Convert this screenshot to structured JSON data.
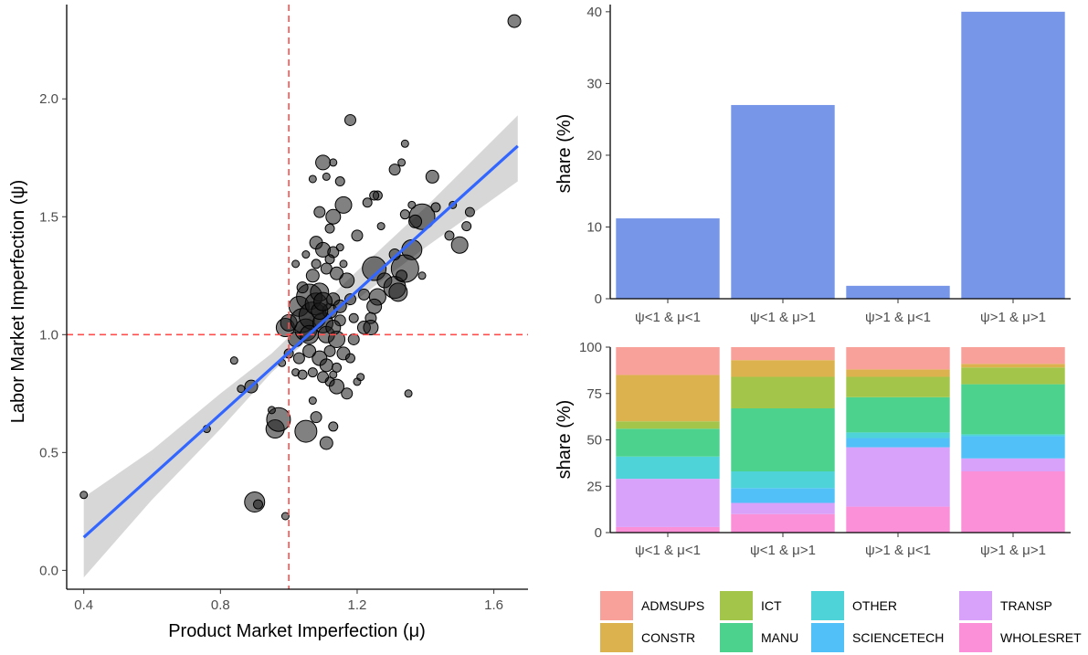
{
  "chart_data": [
    {
      "type": "scatter",
      "xlabel": "Product Market Imperfection (μ)",
      "ylabel": "Labor Market Imperfection (ψ)",
      "xlim": [
        0.35,
        1.7
      ],
      "ylim": [
        -0.08,
        2.4
      ],
      "xticks": [
        0.4,
        0.8,
        1.2,
        1.6
      ],
      "xtick_labels": [
        "0.4",
        "0.8",
        "1.2",
        "1.6"
      ],
      "yticks": [
        0.0,
        0.5,
        1.0,
        1.5,
        2.0
      ],
      "ytick_labels": [
        "0.0",
        "0.5",
        "1.0",
        "1.5",
        "2.0"
      ],
      "reference_lines": {
        "x": 1.0,
        "y": 1.0,
        "color": "#ff4d4d",
        "style": "dashed"
      },
      "fit": {
        "x": [
          0.4,
          1.67
        ],
        "y": [
          0.14,
          1.8
        ],
        "color": "#3366ff"
      },
      "confidence_band": {
        "x": [
          0.4,
          0.6,
          0.8,
          0.95,
          1.05,
          1.2,
          1.4,
          1.67
        ],
        "lower": [
          -0.03,
          0.3,
          0.6,
          0.84,
          0.97,
          1.15,
          1.37,
          1.65
        ],
        "upper": [
          0.31,
          0.51,
          0.75,
          0.92,
          1.06,
          1.27,
          1.54,
          1.93
        ],
        "color": "#d3d3d3"
      },
      "points": [
        {
          "x": 1.66,
          "y": 2.33,
          "s": 7
        },
        {
          "x": 0.4,
          "y": 0.32,
          "s": 4
        },
        {
          "x": 0.76,
          "y": 0.6,
          "s": 4
        },
        {
          "x": 0.84,
          "y": 0.89,
          "s": 4
        },
        {
          "x": 0.86,
          "y": 0.77,
          "s": 4
        },
        {
          "x": 0.89,
          "y": 0.78,
          "s": 7
        },
        {
          "x": 0.9,
          "y": 0.29,
          "s": 11
        },
        {
          "x": 0.91,
          "y": 0.28,
          "s": 5
        },
        {
          "x": 0.96,
          "y": 0.6,
          "s": 10
        },
        {
          "x": 0.97,
          "y": 0.64,
          "s": 13
        },
        {
          "x": 0.99,
          "y": 0.23,
          "s": 4
        },
        {
          "x": 0.95,
          "y": 0.68,
          "s": 4
        },
        {
          "x": 1.05,
          "y": 0.59,
          "s": 12
        },
        {
          "x": 1.08,
          "y": 0.65,
          "s": 6
        },
        {
          "x": 1.11,
          "y": 0.54,
          "s": 7
        },
        {
          "x": 1.13,
          "y": 0.61,
          "s": 5
        },
        {
          "x": 1.07,
          "y": 0.72,
          "s": 4
        },
        {
          "x": 1.12,
          "y": 0.8,
          "s": 5
        },
        {
          "x": 1.14,
          "y": 0.78,
          "s": 8
        },
        {
          "x": 1.18,
          "y": 1.91,
          "s": 6
        },
        {
          "x": 1.1,
          "y": 1.73,
          "s": 8
        },
        {
          "x": 1.11,
          "y": 1.67,
          "s": 4
        },
        {
          "x": 1.13,
          "y": 1.73,
          "s": 4
        },
        {
          "x": 1.15,
          "y": 1.65,
          "s": 5
        },
        {
          "x": 1.07,
          "y": 1.66,
          "s": 4
        },
        {
          "x": 1.16,
          "y": 1.55,
          "s": 9
        },
        {
          "x": 1.13,
          "y": 1.5,
          "s": 8
        },
        {
          "x": 1.09,
          "y": 1.52,
          "s": 6
        },
        {
          "x": 1.12,
          "y": 1.45,
          "s": 5
        },
        {
          "x": 1.08,
          "y": 1.39,
          "s": 7
        },
        {
          "x": 1.1,
          "y": 1.36,
          "s": 8
        },
        {
          "x": 1.13,
          "y": 1.35,
          "s": 6
        },
        {
          "x": 1.15,
          "y": 1.37,
          "s": 4
        },
        {
          "x": 1.26,
          "y": 1.59,
          "s": 5
        },
        {
          "x": 1.31,
          "y": 1.7,
          "s": 6
        },
        {
          "x": 1.33,
          "y": 1.73,
          "s": 4
        },
        {
          "x": 1.34,
          "y": 1.81,
          "s": 4
        },
        {
          "x": 1.36,
          "y": 1.55,
          "s": 4
        },
        {
          "x": 1.34,
          "y": 1.51,
          "s": 5
        },
        {
          "x": 1.39,
          "y": 1.5,
          "s": 14
        },
        {
          "x": 1.37,
          "y": 1.48,
          "s": 7
        },
        {
          "x": 1.42,
          "y": 1.67,
          "s": 7
        },
        {
          "x": 1.43,
          "y": 1.54,
          "s": 5
        },
        {
          "x": 1.48,
          "y": 1.55,
          "s": 4
        },
        {
          "x": 1.53,
          "y": 1.52,
          "s": 5
        },
        {
          "x": 1.52,
          "y": 1.46,
          "s": 5
        },
        {
          "x": 1.47,
          "y": 1.42,
          "s": 5
        },
        {
          "x": 1.5,
          "y": 1.38,
          "s": 9
        },
        {
          "x": 1.36,
          "y": 1.36,
          "s": 11
        },
        {
          "x": 1.39,
          "y": 1.25,
          "s": 4
        },
        {
          "x": 1.34,
          "y": 1.28,
          "s": 15
        },
        {
          "x": 1.31,
          "y": 1.34,
          "s": 6
        },
        {
          "x": 1.27,
          "y": 1.46,
          "s": 4
        },
        {
          "x": 1.25,
          "y": 1.28,
          "s": 13
        },
        {
          "x": 1.28,
          "y": 1.23,
          "s": 8
        },
        {
          "x": 1.31,
          "y": 1.2,
          "s": 12
        },
        {
          "x": 1.32,
          "y": 1.18,
          "s": 10
        },
        {
          "x": 1.33,
          "y": 1.25,
          "s": 6
        },
        {
          "x": 1.23,
          "y": 1.56,
          "s": 5
        },
        {
          "x": 1.2,
          "y": 1.42,
          "s": 6
        },
        {
          "x": 1.25,
          "y": 1.59,
          "s": 5
        },
        {
          "x": 1.22,
          "y": 1.17,
          "s": 6
        },
        {
          "x": 1.26,
          "y": 1.16,
          "s": 9
        },
        {
          "x": 1.25,
          "y": 1.12,
          "s": 8
        },
        {
          "x": 1.24,
          "y": 1.07,
          "s": 6
        },
        {
          "x": 1.22,
          "y": 1.03,
          "s": 7
        },
        {
          "x": 1.24,
          "y": 1.03,
          "s": 8
        },
        {
          "x": 1.17,
          "y": 0.75,
          "s": 6
        },
        {
          "x": 1.2,
          "y": 0.8,
          "s": 4
        },
        {
          "x": 1.21,
          "y": 0.82,
          "s": 4
        },
        {
          "x": 1.35,
          "y": 0.75,
          "s": 4
        },
        {
          "x": 0.99,
          "y": 1.03,
          "s": 10
        },
        {
          "x": 1.0,
          "y": 1.05,
          "s": 9
        },
        {
          "x": 1.02,
          "y": 0.98,
          "s": 8
        },
        {
          "x": 1.03,
          "y": 1.12,
          "s": 11
        },
        {
          "x": 1.04,
          "y": 1.06,
          "s": 13
        },
        {
          "x": 1.05,
          "y": 1.02,
          "s": 12
        },
        {
          "x": 1.06,
          "y": 1.16,
          "s": 14
        },
        {
          "x": 1.07,
          "y": 1.08,
          "s": 15
        },
        {
          "x": 1.08,
          "y": 1.13,
          "s": 12
        },
        {
          "x": 1.09,
          "y": 1.18,
          "s": 10
        },
        {
          "x": 1.1,
          "y": 1.05,
          "s": 11
        },
        {
          "x": 1.11,
          "y": 1.0,
          "s": 9
        },
        {
          "x": 1.12,
          "y": 1.1,
          "s": 8
        },
        {
          "x": 1.13,
          "y": 1.15,
          "s": 7
        },
        {
          "x": 1.14,
          "y": 0.98,
          "s": 9
        },
        {
          "x": 1.15,
          "y": 1.06,
          "s": 6
        },
        {
          "x": 1.16,
          "y": 0.92,
          "s": 7
        },
        {
          "x": 1.12,
          "y": 0.93,
          "s": 6
        },
        {
          "x": 1.09,
          "y": 0.9,
          "s": 8
        },
        {
          "x": 1.06,
          "y": 0.93,
          "s": 7
        },
        {
          "x": 1.03,
          "y": 0.9,
          "s": 6
        },
        {
          "x": 1.0,
          "y": 0.92,
          "s": 5
        },
        {
          "x": 1.11,
          "y": 0.87,
          "s": 7
        },
        {
          "x": 1.14,
          "y": 0.86,
          "s": 5
        },
        {
          "x": 1.18,
          "y": 0.9,
          "s": 5
        },
        {
          "x": 1.19,
          "y": 0.98,
          "s": 6
        },
        {
          "x": 1.19,
          "y": 1.07,
          "s": 5
        },
        {
          "x": 1.18,
          "y": 1.15,
          "s": 6
        },
        {
          "x": 1.17,
          "y": 1.23,
          "s": 8
        },
        {
          "x": 1.14,
          "y": 1.26,
          "s": 7
        },
        {
          "x": 1.11,
          "y": 1.28,
          "s": 6
        },
        {
          "x": 1.07,
          "y": 1.25,
          "s": 7
        },
        {
          "x": 1.04,
          "y": 1.2,
          "s": 6
        },
        {
          "x": 1.02,
          "y": 1.3,
          "s": 4
        },
        {
          "x": 1.08,
          "y": 1.3,
          "s": 5
        },
        {
          "x": 1.02,
          "y": 0.84,
          "s": 4
        },
        {
          "x": 1.04,
          "y": 0.83,
          "s": 5
        },
        {
          "x": 1.07,
          "y": 0.84,
          "s": 5
        },
        {
          "x": 1.1,
          "y": 0.82,
          "s": 6
        },
        {
          "x": 1.13,
          "y": 0.83,
          "s": 4
        },
        {
          "x": 0.98,
          "y": 0.88,
          "s": 4
        },
        {
          "x": 1.05,
          "y": 1.34,
          "s": 4
        },
        {
          "x": 1.12,
          "y": 1.32,
          "s": 5
        },
        {
          "x": 1.16,
          "y": 1.3,
          "s": 4
        },
        {
          "x": 1.09,
          "y": 1.1,
          "s": 9
        },
        {
          "x": 1.06,
          "y": 1.0,
          "s": 10
        },
        {
          "x": 1.13,
          "y": 1.03,
          "s": 8
        },
        {
          "x": 1.1,
          "y": 1.14,
          "s": 10
        },
        {
          "x": 1.15,
          "y": 1.12,
          "s": 7
        }
      ]
    },
    {
      "type": "bar",
      "ylabel": "share (%)",
      "categories": [
        "ψ<1 & μ<1",
        "ψ<1 & μ>1",
        "ψ>1 & μ<1",
        "ψ>1 & μ>1"
      ],
      "values": [
        11.2,
        27.0,
        1.8,
        40.0
      ],
      "ylim": [
        0,
        41
      ],
      "yticks": [
        0,
        10,
        20,
        30,
        40
      ],
      "ytick_labels": [
        "0",
        "10",
        "20",
        "30",
        "40"
      ],
      "color": "#7896e8"
    },
    {
      "type": "bar",
      "stacked": true,
      "ylabel": "share (%)",
      "categories": [
        "ψ<1 & μ<1",
        "ψ<1 & μ>1",
        "ψ>1 & μ<1",
        "ψ>1 & μ>1"
      ],
      "ylim": [
        0,
        100
      ],
      "yticks": [
        0,
        25,
        50,
        75,
        100
      ],
      "ytick_labels": [
        "0",
        "25",
        "50",
        "75",
        "100"
      ],
      "stack_order_bottom_to_top": [
        "WHOLESRET",
        "TRANSP",
        "SCIENCETECH",
        "OTHER",
        "MANU",
        "ICT",
        "CONSTR",
        "ADMSUPS"
      ],
      "series": [
        {
          "name": "ADMSUPS",
          "color": "#f8a09a",
          "values": [
            15,
            7,
            12,
            9
          ]
        },
        {
          "name": "CONSTR",
          "color": "#dbb24d",
          "values": [
            25,
            9,
            4,
            2
          ]
        },
        {
          "name": "ICT",
          "color": "#a3c64a",
          "values": [
            4,
            17,
            11,
            9
          ]
        },
        {
          "name": "MANU",
          "color": "#4dd28e",
          "values": [
            15,
            34,
            19,
            27
          ]
        },
        {
          "name": "OTHER",
          "color": "#4dd3d8",
          "values": [
            12,
            9,
            3,
            1
          ]
        },
        {
          "name": "SCIENCETECH",
          "color": "#52c0f8",
          "values": [
            0,
            8,
            5,
            12
          ]
        },
        {
          "name": "TRANSP",
          "color": "#d8a2fb",
          "values": [
            26,
            6,
            32,
            7
          ]
        },
        {
          "name": "WHOLESRET",
          "color": "#fb8fd8",
          "values": [
            3,
            10,
            14,
            33
          ]
        }
      ]
    }
  ],
  "legend": {
    "placement": "bottom-right",
    "items": [
      {
        "label": "ADMSUPS",
        "color": "#f8a09a"
      },
      {
        "label": "CONSTR",
        "color": "#dbb24d"
      },
      {
        "label": "ICT",
        "color": "#a3c64a"
      },
      {
        "label": "MANU",
        "color": "#4dd28e"
      },
      {
        "label": "OTHER",
        "color": "#4dd3d8"
      },
      {
        "label": "SCIENCETECH",
        "color": "#52c0f8"
      },
      {
        "label": "TRANSP",
        "color": "#d8a2fb"
      },
      {
        "label": "WHOLESRET",
        "color": "#fb8fd8"
      }
    ]
  }
}
